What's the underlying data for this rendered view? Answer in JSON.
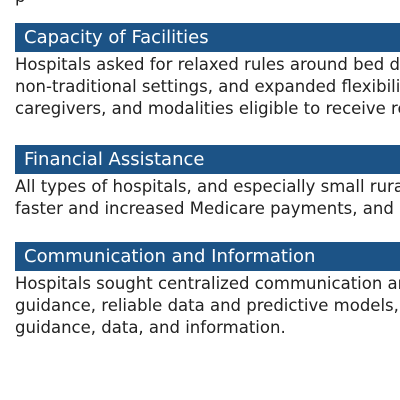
{
  "top_fragment": "p",
  "sections": [
    {
      "heading": "Capacity of Facilities",
      "lines": [
        "Hospitals asked for relaxed rules around bed de",
        "non-traditional settings, and expanded flexibiliti",
        "caregivers, and modalities eligible to receive rei"
      ]
    },
    {
      "heading": "Financial Assistance",
      "lines": [
        "All types of hospitals, and especially small rural",
        "faster and increased Medicare payments, and lo"
      ]
    },
    {
      "heading": "Communication and Information",
      "lines": [
        "Hospitals sought centralized communication an",
        "guidance, reliable data and predictive models, a",
        "guidance, data, and information."
      ]
    }
  ],
  "colors": {
    "header_background": "#1c5386",
    "header_text": "#ffffff",
    "body_text": "#222222"
  }
}
